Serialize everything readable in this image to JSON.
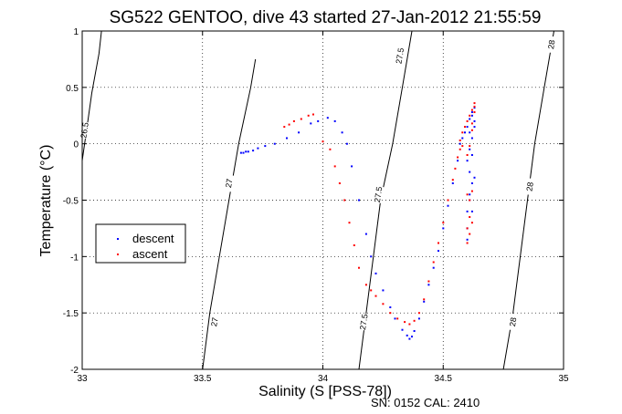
{
  "chart_data": {
    "type": "scatter",
    "title": "SG522 GENTOO, dive 43 started 27-Jan-2012 21:55:59",
    "xlabel": "Salinity (S [PSS-78])",
    "ylabel": "Temperature (°C)",
    "xlim": [
      33,
      35
    ],
    "ylim": [
      -2,
      1
    ],
    "x_ticks": [
      33,
      33.5,
      34,
      34.5,
      35
    ],
    "x_tick_labels": [
      "33",
      "33.5",
      "34",
      "34.5",
      "35"
    ],
    "y_ticks": [
      -2,
      -1.5,
      -1,
      -0.5,
      0,
      0.5,
      1
    ],
    "y_tick_labels": [
      "-2",
      "-1.5",
      "-1",
      "-0.5",
      "0",
      "0.5",
      "1"
    ],
    "grid": true,
    "legend_position": "left-middle",
    "footer": "SN: 0152  CAL: 2410",
    "series": [
      {
        "name": "descent",
        "color": "#0000ff",
        "points": [
          [
            33.66,
            -0.08
          ],
          [
            33.67,
            -0.08
          ],
          [
            33.68,
            -0.07
          ],
          [
            33.69,
            -0.07
          ],
          [
            33.71,
            -0.06
          ],
          [
            33.73,
            -0.04
          ],
          [
            33.76,
            -0.02
          ],
          [
            33.8,
            0.0
          ],
          [
            33.85,
            0.05
          ],
          [
            33.9,
            0.1
          ],
          [
            33.95,
            0.18
          ],
          [
            33.98,
            0.2
          ],
          [
            34.02,
            0.23
          ],
          [
            34.05,
            0.2
          ],
          [
            34.08,
            0.1
          ],
          [
            34.1,
            0.0
          ],
          [
            34.12,
            -0.2
          ],
          [
            34.15,
            -0.5
          ],
          [
            34.18,
            -0.8
          ],
          [
            34.2,
            -1.0
          ],
          [
            34.22,
            -1.15
          ],
          [
            34.25,
            -1.3
          ],
          [
            34.28,
            -1.45
          ],
          [
            34.3,
            -1.55
          ],
          [
            34.33,
            -1.65
          ],
          [
            34.35,
            -1.7
          ],
          [
            34.36,
            -1.73
          ],
          [
            34.37,
            -1.71
          ],
          [
            34.38,
            -1.66
          ],
          [
            34.4,
            -1.55
          ],
          [
            34.42,
            -1.4
          ],
          [
            34.44,
            -1.25
          ],
          [
            34.46,
            -1.1
          ],
          [
            34.48,
            -0.95
          ],
          [
            34.5,
            -0.75
          ],
          [
            34.52,
            -0.55
          ],
          [
            34.54,
            -0.35
          ],
          [
            34.56,
            -0.15
          ],
          [
            34.57,
            0.0
          ],
          [
            34.58,
            0.05
          ],
          [
            34.59,
            0.1
          ],
          [
            34.6,
            0.15
          ],
          [
            34.61,
            0.22
          ],
          [
            34.62,
            0.28
          ],
          [
            34.63,
            0.32
          ],
          [
            34.63,
            0.2
          ],
          [
            34.62,
            0.05
          ],
          [
            34.61,
            -0.05
          ],
          [
            34.6,
            -0.15
          ],
          [
            34.61,
            -0.25
          ],
          [
            34.62,
            -0.35
          ],
          [
            34.63,
            -0.3
          ],
          [
            34.62,
            -0.1
          ],
          [
            34.61,
            0.1
          ],
          [
            34.62,
            0.25
          ],
          [
            34.63,
            0.15
          ],
          [
            34.61,
            -0.45
          ],
          [
            34.6,
            -0.6
          ],
          [
            34.6,
            -0.75
          ],
          [
            34.6,
            -0.85
          ],
          [
            34.61,
            -0.5
          ],
          [
            34.62,
            -0.6
          ]
        ]
      },
      {
        "name": "ascent",
        "color": "#ff0000",
        "points": [
          [
            33.84,
            0.15
          ],
          [
            33.86,
            0.17
          ],
          [
            33.88,
            0.2
          ],
          [
            33.91,
            0.22
          ],
          [
            33.94,
            0.25
          ],
          [
            33.96,
            0.26
          ],
          [
            34.0,
            0.02
          ],
          [
            34.03,
            -0.05
          ],
          [
            34.05,
            -0.2
          ],
          [
            34.07,
            -0.35
          ],
          [
            34.09,
            -0.5
          ],
          [
            34.11,
            -0.7
          ],
          [
            34.13,
            -0.9
          ],
          [
            34.15,
            -1.1
          ],
          [
            34.18,
            -1.25
          ],
          [
            34.2,
            -1.3
          ],
          [
            34.22,
            -1.35
          ],
          [
            34.25,
            -1.42
          ],
          [
            34.28,
            -1.5
          ],
          [
            34.31,
            -1.55
          ],
          [
            34.34,
            -1.58
          ],
          [
            34.36,
            -1.6
          ],
          [
            34.38,
            -1.57
          ],
          [
            34.4,
            -1.5
          ],
          [
            34.42,
            -1.38
          ],
          [
            34.44,
            -1.22
          ],
          [
            34.46,
            -1.05
          ],
          [
            34.48,
            -0.88
          ],
          [
            34.5,
            -0.7
          ],
          [
            34.52,
            -0.5
          ],
          [
            34.54,
            -0.32
          ],
          [
            34.56,
            -0.12
          ],
          [
            34.57,
            0.03
          ],
          [
            34.58,
            0.1
          ],
          [
            34.59,
            0.15
          ],
          [
            34.6,
            0.2
          ],
          [
            34.61,
            0.25
          ],
          [
            34.62,
            0.3
          ],
          [
            34.63,
            0.36
          ],
          [
            34.63,
            0.33
          ],
          [
            34.62,
            0.12
          ],
          [
            34.61,
            -0.02
          ],
          [
            34.6,
            -0.1
          ],
          [
            34.6,
            -0.45
          ],
          [
            34.61,
            -0.5
          ],
          [
            34.62,
            -0.42
          ],
          [
            34.61,
            -0.65
          ],
          [
            34.6,
            -0.75
          ],
          [
            34.6,
            -0.88
          ],
          [
            34.61,
            -0.8
          ],
          [
            34.62,
            -0.7
          ],
          [
            34.58,
            -0.02
          ],
          [
            34.62,
            0.18
          ],
          [
            34.63,
            0.28
          ],
          [
            34.55,
            -0.22
          ],
          [
            34.57,
            -0.05
          ]
        ]
      }
    ],
    "contours": [
      {
        "label": "26.5",
        "points": [
          [
            33.0,
            -0.15
          ],
          [
            33.02,
            0.15
          ],
          [
            33.04,
            0.45
          ],
          [
            33.07,
            0.8
          ],
          [
            33.08,
            1.0
          ]
        ],
        "label_positions": [
          [
            33.01,
            0.12
          ]
        ]
      },
      {
        "label": "27",
        "points": [
          [
            33.5,
            -2.0
          ],
          [
            33.53,
            -1.5
          ],
          [
            33.57,
            -1.0
          ],
          [
            33.61,
            -0.5
          ],
          [
            33.65,
            0.0
          ],
          [
            33.7,
            0.5
          ],
          [
            33.72,
            0.75
          ]
        ],
        "label_positions": [
          [
            33.55,
            -1.58
          ],
          [
            33.61,
            -0.35
          ]
        ]
      },
      {
        "label": "27.5",
        "points": [
          [
            34.15,
            -2.0
          ],
          [
            34.18,
            -1.5
          ],
          [
            34.21,
            -1.0
          ],
          [
            34.24,
            -0.5
          ],
          [
            34.29,
            0.0
          ],
          [
            34.33,
            0.5
          ],
          [
            34.37,
            1.0
          ]
        ],
        "label_positions": [
          [
            34.17,
            -1.58
          ],
          [
            34.23,
            -0.45
          ],
          [
            34.32,
            0.78
          ]
        ]
      },
      {
        "label": "28",
        "points": [
          [
            34.75,
            -2.0
          ],
          [
            34.79,
            -1.5
          ],
          [
            34.82,
            -1.0
          ],
          [
            34.85,
            -0.5
          ],
          [
            34.88,
            0.0
          ],
          [
            34.92,
            0.5
          ],
          [
            34.96,
            1.0
          ]
        ],
        "label_positions": [
          [
            34.79,
            -1.58
          ],
          [
            34.86,
            -0.38
          ],
          [
            34.95,
            0.88
          ]
        ]
      }
    ]
  }
}
